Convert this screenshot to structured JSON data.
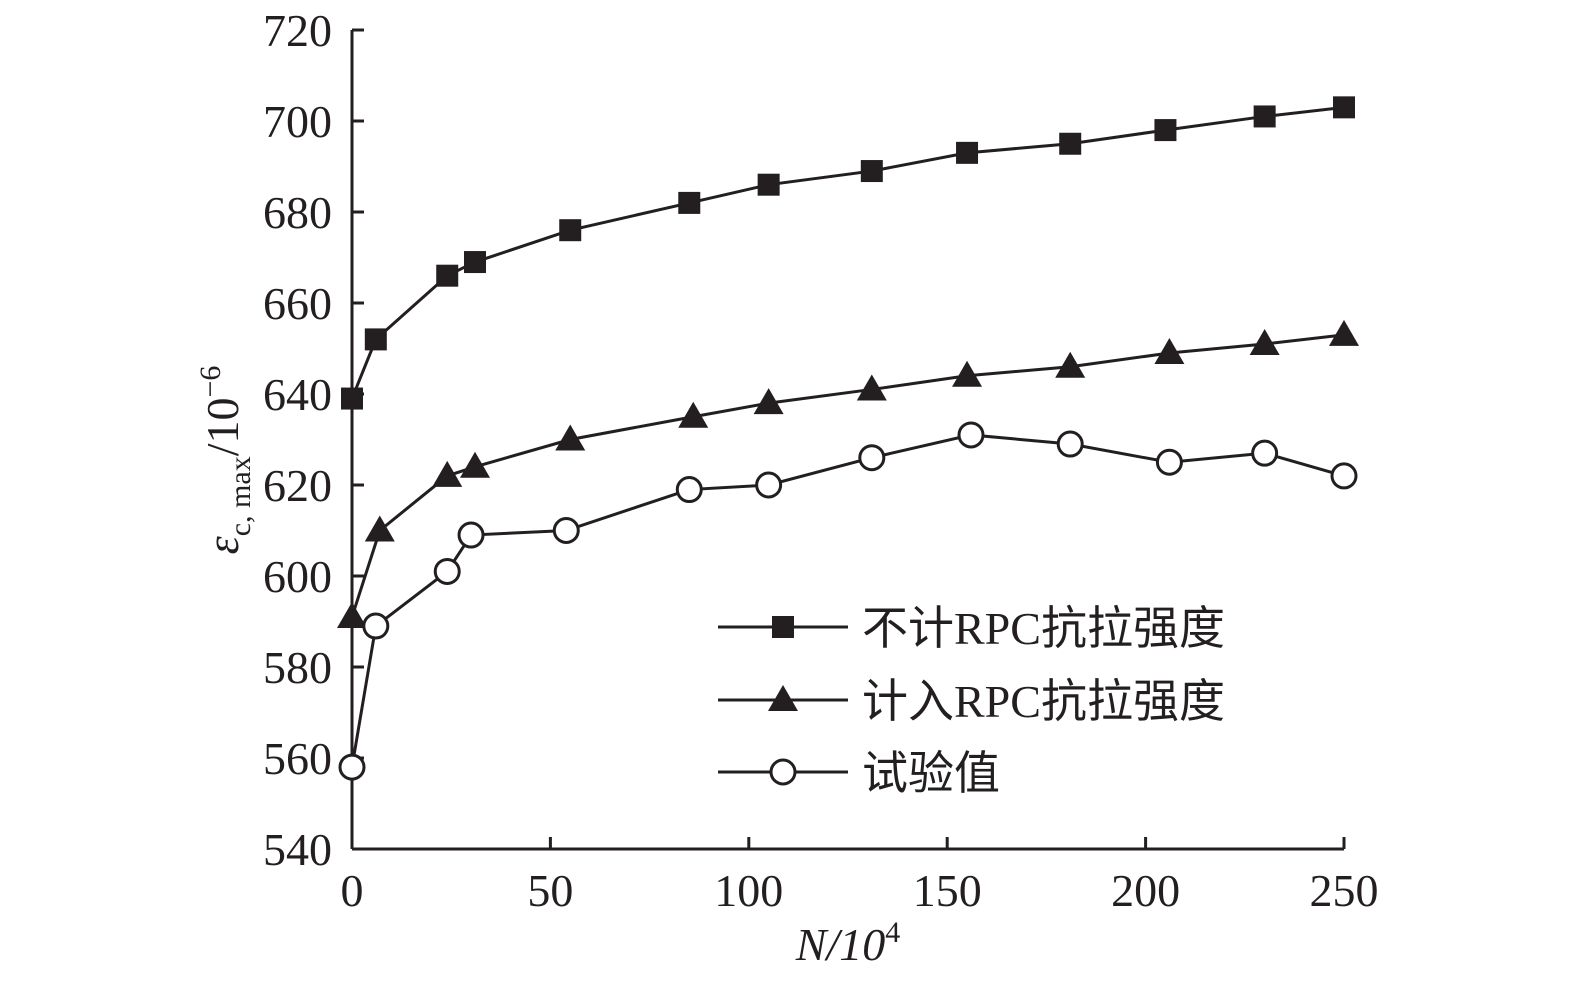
{
  "chart_data": {
    "type": "line",
    "xlabel": "N/10",
    "xlabel_sup": "4",
    "ylabel_base": "ε",
    "ylabel_sub": "c, max",
    "ylabel_unit": "/10",
    "ylabel_sup": "−6",
    "xlim": [
      0,
      250
    ],
    "ylim": [
      540,
      720
    ],
    "xticks": [
      0,
      50,
      100,
      150,
      200,
      250
    ],
    "yticks": [
      540,
      560,
      580,
      600,
      620,
      640,
      660,
      680,
      700,
      720
    ],
    "grid": false,
    "legend_position": "bottom-right",
    "series": [
      {
        "name": "不计RPC抗拉强度",
        "marker": "filled-square",
        "x": [
          0,
          6,
          24,
          31,
          55,
          85,
          105,
          131,
          155,
          181,
          205,
          230,
          250
        ],
        "y": [
          639,
          652,
          666,
          669,
          676,
          682,
          686,
          689,
          693,
          695,
          698,
          701,
          703
        ]
      },
      {
        "name": "计入RPC抗拉强度",
        "marker": "filled-triangle",
        "x": [
          0,
          7,
          24,
          31,
          55,
          86,
          105,
          131,
          155,
          181,
          206,
          230,
          250
        ],
        "y": [
          591,
          610,
          622,
          624,
          630,
          635,
          638,
          641,
          644,
          646,
          649,
          651,
          653
        ]
      },
      {
        "name": "试验值",
        "marker": "open-circle",
        "x": [
          0,
          6,
          24,
          30,
          54,
          85,
          105,
          131,
          156,
          181,
          206,
          230,
          250
        ],
        "y": [
          558,
          589,
          601,
          609,
          610,
          619,
          620,
          626,
          631,
          629,
          625,
          627,
          622
        ]
      }
    ]
  }
}
